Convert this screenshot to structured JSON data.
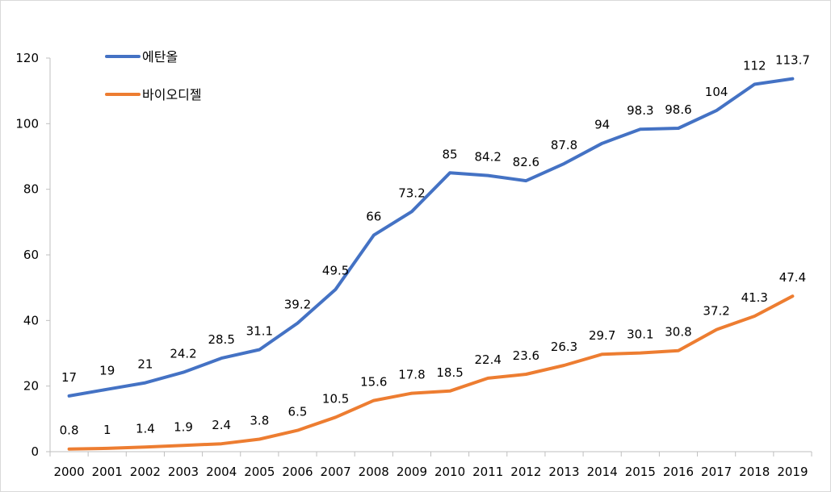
{
  "chart_data": {
    "type": "line",
    "title": "",
    "xlabel": "",
    "ylabel": "",
    "categories": [
      "2000",
      "2001",
      "2002",
      "2003",
      "2004",
      "2005",
      "2006",
      "2007",
      "2008",
      "2009",
      "2010",
      "2011",
      "2012",
      "2013",
      "2014",
      "2015",
      "2016",
      "2017",
      "2018",
      "2019"
    ],
    "ylim": [
      0,
      120
    ],
    "yticks": [
      0,
      20,
      40,
      60,
      80,
      100,
      120
    ],
    "grid": false,
    "legend_position": "top-left",
    "series": [
      {
        "name": "에탄올",
        "color": "#4472C4",
        "values": [
          17,
          19,
          21,
          24.2,
          28.5,
          31.1,
          39.2,
          49.5,
          66,
          73.2,
          85,
          84.2,
          82.6,
          87.8,
          94,
          98.3,
          98.6,
          104,
          112,
          113.7
        ]
      },
      {
        "name": "바이오디젤",
        "color": "#ED7D31",
        "values": [
          0.8,
          1,
          1.4,
          1.9,
          2.4,
          3.8,
          6.5,
          10.5,
          15.6,
          17.8,
          18.5,
          22.4,
          23.6,
          26.3,
          29.7,
          30.1,
          30.8,
          37.2,
          41.3,
          47.4
        ]
      }
    ]
  }
}
